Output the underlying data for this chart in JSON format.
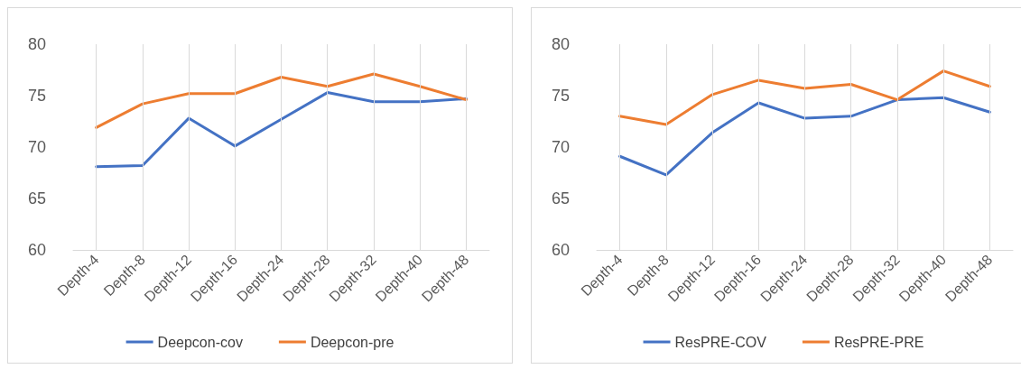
{
  "chart_data": [
    {
      "type": "line",
      "categories": [
        "Depth-4",
        "Depth-8",
        "Depth-12",
        "Depth-16",
        "Depth-24",
        "Depth-28",
        "Depth-32",
        "Depth-40",
        "Depth-48"
      ],
      "series": [
        {
          "name": "Deepcon-cov",
          "color": "#4472c4",
          "values": [
            68.1,
            68.2,
            72.8,
            70.1,
            72.7,
            75.3,
            74.4,
            74.4,
            74.7
          ]
        },
        {
          "name": "Deepcon-pre",
          "color": "#ed7d31",
          "values": [
            71.9,
            74.2,
            75.2,
            75.2,
            76.8,
            75.9,
            77.1,
            75.9,
            74.6
          ]
        }
      ],
      "ylim": [
        60,
        80
      ],
      "yticks": [
        60,
        65,
        70,
        75,
        80
      ],
      "grid": "x",
      "legend": "bottom",
      "marker": "none",
      "line_style": "solid"
    },
    {
      "type": "line",
      "categories": [
        "Depth-4",
        "Depth-8",
        "Depth-12",
        "Depth-16",
        "Depth-24",
        "Depth-28",
        "Depth-32",
        "Depth-40",
        "Depth-48"
      ],
      "series": [
        {
          "name": "ResPRE-COV",
          "color": "#4472c4",
          "values": [
            69.1,
            67.3,
            71.4,
            74.3,
            72.8,
            73.0,
            74.6,
            74.8,
            73.4
          ]
        },
        {
          "name": "ResPRE-PRE",
          "color": "#ed7d31",
          "values": [
            73.0,
            72.2,
            75.1,
            76.5,
            75.7,
            76.1,
            74.6,
            77.4,
            75.9
          ]
        }
      ],
      "ylim": [
        60,
        80
      ],
      "yticks": [
        60,
        65,
        70,
        75,
        80
      ],
      "grid": "x",
      "legend": "bottom",
      "marker": "none",
      "line_style": "solid"
    }
  ]
}
